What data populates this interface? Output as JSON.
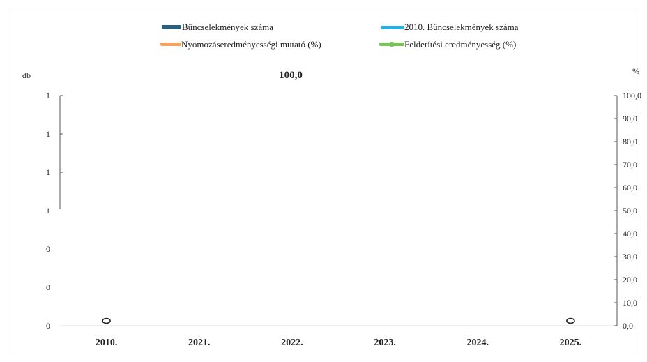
{
  "chart_data": {
    "type": "bar",
    "title": "100,0",
    "categories": [
      "2010.",
      "2021.",
      "2022.",
      "2023.",
      "2024.",
      "2025."
    ],
    "left_axis": {
      "label": "db",
      "ticks": [
        "0",
        "0",
        "0",
        "1",
        "1",
        "1",
        "1"
      ]
    },
    "right_axis": {
      "label": "%",
      "ylim": [
        0,
        100
      ],
      "ticks": [
        "0,0",
        "10,0",
        "20,0",
        "30,0",
        "40,0",
        "50,0",
        "60,0",
        "70,0",
        "80,0",
        "90,0",
        "100,0"
      ]
    },
    "series": [
      {
        "name": "Bűncselekmények száma",
        "kind": "bar",
        "color": "#2e5f7a",
        "values": [
          0,
          0,
          0,
          0,
          0,
          0
        ]
      },
      {
        "name": "2010. Bűncselekmények száma",
        "kind": "line",
        "color": "#29aee0",
        "values": [
          0,
          0,
          0,
          0,
          0,
          0
        ]
      },
      {
        "name": "Nyomozáseredményességi mutató (%)",
        "kind": "line",
        "color": "#f4a460",
        "values": [
          null,
          null,
          null,
          null,
          null,
          null
        ]
      },
      {
        "name": "Felderítési eredményesség (%)",
        "kind": "line-marker",
        "color": "#7ac35b",
        "values": [
          null,
          null,
          null,
          null,
          null,
          null
        ]
      }
    ],
    "markers": [
      {
        "category": "2010.",
        "value": 0
      },
      {
        "category": "2025.",
        "value": 0
      }
    ],
    "legend_position": "top",
    "grid": false
  }
}
